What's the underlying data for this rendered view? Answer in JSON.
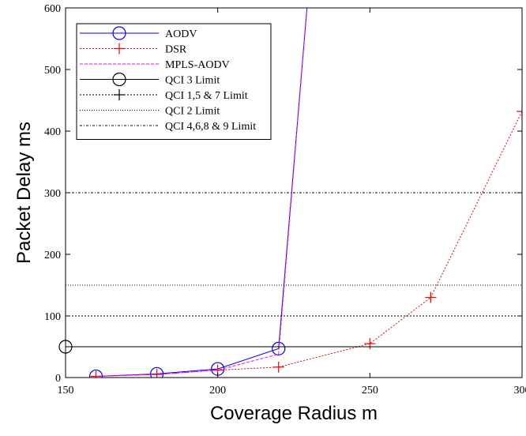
{
  "chart_data": {
    "type": "line",
    "xlabel": "Coverage Radius  m",
    "ylabel": "Packet Delay ms",
    "xlim": [
      150,
      300
    ],
    "ylim": [
      0,
      600
    ],
    "xticks": [
      150,
      200,
      250,
      300
    ],
    "yticks": [
      0,
      100,
      200,
      300,
      400,
      500,
      600
    ],
    "grid": false,
    "legend_position": "top-left",
    "series": [
      {
        "name": "AODV",
        "color": "#0000ff",
        "dash": "solid",
        "marker": "circle",
        "x": [
          160,
          180,
          200,
          220,
          230
        ],
        "y": [
          2,
          6,
          14,
          47,
          640
        ]
      },
      {
        "name": "DSR",
        "color": "#ff0000",
        "dash": "dotted",
        "marker": "plus",
        "x": [
          160,
          180,
          200,
          220,
          250,
          270,
          300
        ],
        "y": [
          2,
          5,
          12,
          17,
          55,
          130,
          432
        ]
      },
      {
        "name": "MPLS-AODV",
        "color": "#ff00ff",
        "dash": "dashed",
        "marker": "none",
        "x": [
          160,
          180,
          200,
          220,
          230
        ],
        "y": [
          2,
          5,
          12,
          38,
          640
        ]
      },
      {
        "name": "QCI 3 Limit",
        "color": "#000000",
        "dash": "solid",
        "marker": "circle",
        "x": [
          150,
          300
        ],
        "y": [
          50,
          50
        ]
      },
      {
        "name": "QCI 1,5 & 7 Limit",
        "color": "#000000",
        "dash": "dotted",
        "marker": "plus",
        "x": [
          150,
          300
        ],
        "y": [
          100,
          100
        ]
      },
      {
        "name": "QCI 2 Limit",
        "color": "#000000",
        "dash": "finedot",
        "marker": "none",
        "x": [
          150,
          300
        ],
        "y": [
          150,
          150
        ]
      },
      {
        "name": "QCI 4,6,8 & 9 Limit",
        "color": "#000000",
        "dash": "dashdot",
        "marker": "none",
        "x": [
          150,
          300
        ],
        "y": [
          300,
          300
        ]
      }
    ]
  }
}
